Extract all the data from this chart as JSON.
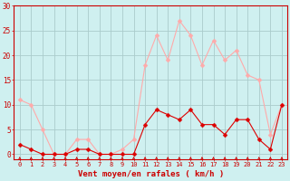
{
  "x": [
    0,
    1,
    2,
    3,
    4,
    5,
    6,
    7,
    8,
    9,
    10,
    11,
    12,
    13,
    14,
    15,
    16,
    17,
    18,
    19,
    20,
    21,
    22,
    23
  ],
  "wind_mean": [
    2,
    1,
    0,
    0,
    0,
    1,
    1,
    0,
    0,
    0,
    0,
    6,
    9,
    8,
    7,
    9,
    6,
    6,
    4,
    7,
    7,
    3,
    1,
    10
  ],
  "wind_gust": [
    11,
    10,
    5,
    0,
    0,
    3,
    3,
    0,
    0,
    1,
    3,
    18,
    24,
    19,
    27,
    24,
    18,
    23,
    19,
    21,
    16,
    15,
    4,
    10
  ],
  "bg_color": "#cff0f0",
  "grid_color": "#aacccc",
  "line_mean_color": "#dd0000",
  "line_gust_color": "#ffaaaa",
  "marker_color_mean": "#dd0000",
  "marker_color_gust": "#ffaaaa",
  "xlabel": "Vent moyen/en rafales ( km/h )",
  "xlabel_color": "#cc0000",
  "tick_color": "#cc0000",
  "spine_color": "#cc0000",
  "ylim": [
    -1,
    30
  ],
  "yticks": [
    0,
    5,
    10,
    15,
    20,
    25,
    30
  ],
  "xlim": [
    -0.5,
    23.5
  ],
  "xlabel_fontsize": 6.5,
  "ytick_fontsize": 5.5,
  "xtick_fontsize": 5.0
}
